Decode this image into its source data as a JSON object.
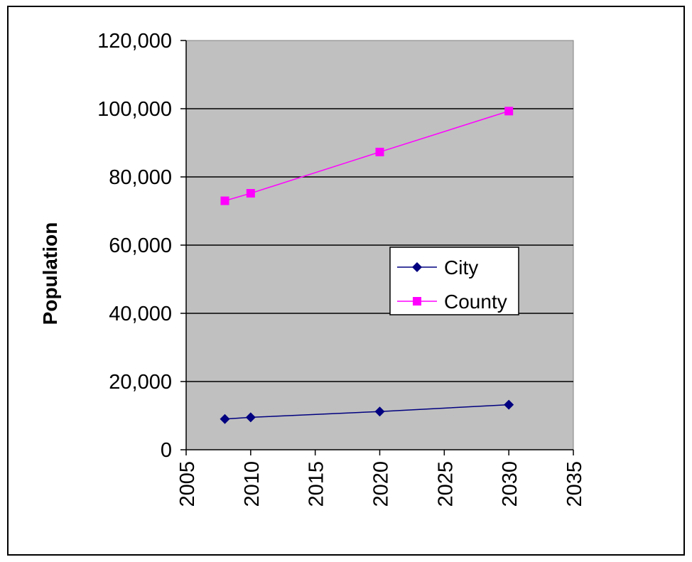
{
  "chart_data": {
    "type": "line",
    "title": "",
    "xlabel": "",
    "ylabel": "Population",
    "xlim": [
      2005,
      2035
    ],
    "ylim": [
      0,
      120000
    ],
    "x_ticks": [
      "2005",
      "2010",
      "2015",
      "2020",
      "2025",
      "2030",
      "2035"
    ],
    "y_ticks": [
      "0",
      "20,000",
      "40,000",
      "60,000",
      "80,000",
      "100,000",
      "120,000"
    ],
    "grid": "horizontal",
    "legend_position": "right-center",
    "plot_background": "#c0c0c0",
    "series": [
      {
        "name": "City",
        "color": "#000080",
        "marker": "diamond",
        "points": [
          {
            "x": 2008,
            "y": 9000
          },
          {
            "x": 2010,
            "y": 9500
          },
          {
            "x": 2020,
            "y": 11200
          },
          {
            "x": 2030,
            "y": 13200
          }
        ]
      },
      {
        "name": "County",
        "color": "#ff00ff",
        "marker": "square",
        "points": [
          {
            "x": 2008,
            "y": 73000
          },
          {
            "x": 2010,
            "y": 75200
          },
          {
            "x": 2020,
            "y": 87300
          },
          {
            "x": 2030,
            "y": 99300
          }
        ]
      }
    ]
  }
}
